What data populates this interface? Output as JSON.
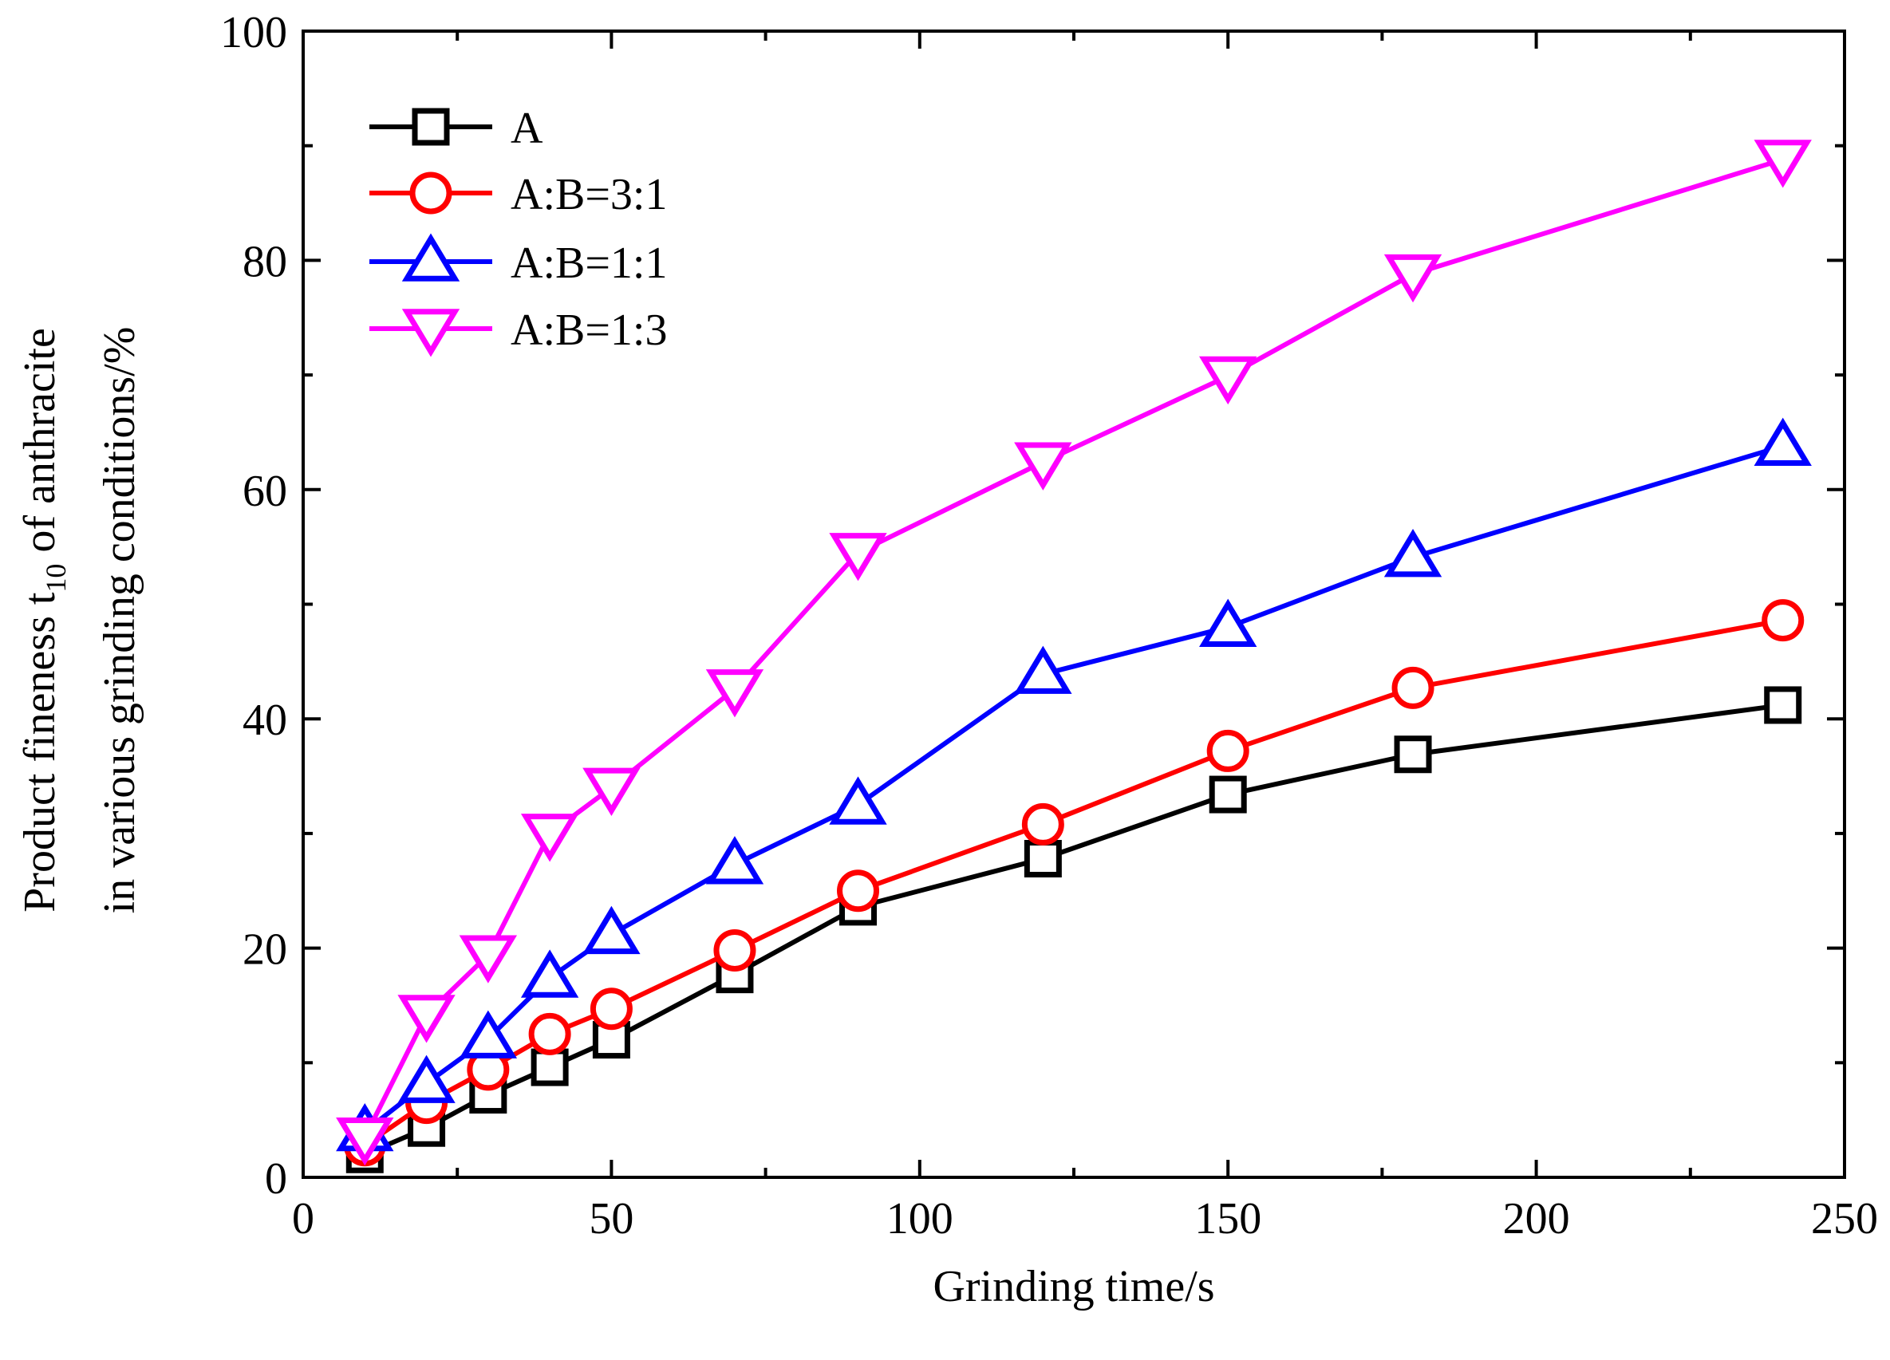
{
  "chart_data": {
    "type": "line",
    "title": "",
    "xlabel": "Grinding time/s",
    "ylabel": {
      "line1_prefix": "Product fineness t",
      "line1_subscript": "10",
      "line1_suffix": " of anthracite",
      "line2": "in various grinding conditions/%"
    },
    "xlim": [
      0,
      250
    ],
    "ylim": [
      0,
      100
    ],
    "x_ticks": [
      0,
      50,
      100,
      150,
      200,
      250
    ],
    "x_tick_labels": [
      "0",
      "50",
      "100",
      "150",
      "200",
      "250"
    ],
    "x_minor_ticks": [
      25,
      75,
      125,
      175,
      225
    ],
    "y_ticks": [
      0,
      20,
      40,
      60,
      80,
      100
    ],
    "y_tick_labels": [
      "0",
      "20",
      "40",
      "60",
      "80",
      "100"
    ],
    "y_minor_ticks": [
      10,
      30,
      50,
      70,
      90
    ],
    "grid": false,
    "legend_position": "top-left",
    "x": [
      10,
      20,
      30,
      40,
      50,
      70,
      90,
      120,
      150,
      180,
      240
    ],
    "series": [
      {
        "name": "A",
        "color": "#000000",
        "marker": "square",
        "values": [
          2.0,
          4.3,
          7.2,
          9.6,
          12.0,
          17.7,
          23.6,
          27.8,
          33.4,
          36.9,
          41.2
        ]
      },
      {
        "name": "A:B=3:1",
        "color": "#ff0000",
        "marker": "circle",
        "values": [
          2.8,
          6.5,
          9.4,
          12.5,
          14.7,
          19.8,
          25.0,
          30.8,
          37.2,
          42.7,
          48.6
        ]
      },
      {
        "name": "A:B=1:1",
        "color": "#0000ff",
        "marker": "triangle-up",
        "values": [
          4.0,
          8.2,
          12.1,
          17.4,
          21.2,
          27.3,
          32.5,
          43.9,
          48.0,
          54.1,
          63.8
        ]
      },
      {
        "name": "A:B=1:3",
        "color": "#ff00ff",
        "marker": "triangle-down",
        "values": [
          3.5,
          14.2,
          19.4,
          30.0,
          34.0,
          42.6,
          54.5,
          62.4,
          69.9,
          78.8,
          88.8
        ]
      }
    ]
  }
}
